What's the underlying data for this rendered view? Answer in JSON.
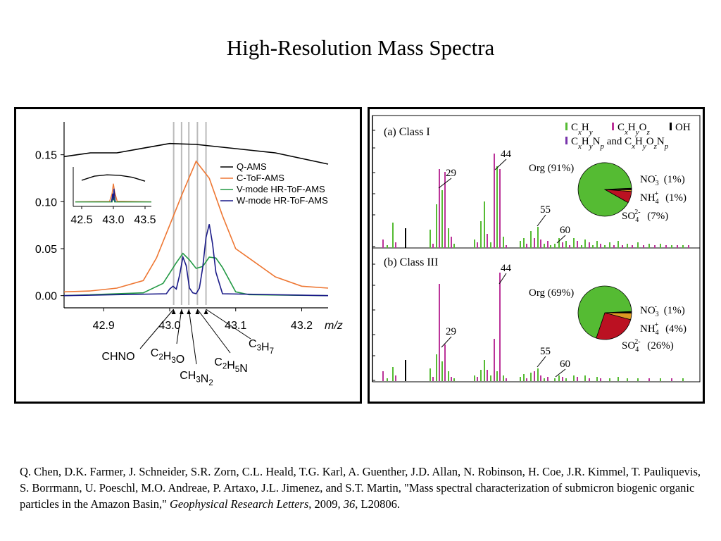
{
  "page": {
    "title": "High-Resolution Mass Spectra"
  },
  "citation": {
    "authors": "Q. Chen, D.K. Farmer, J. Schneider, S.R. Zorn, C.L. Heald, T.G. Karl, A. Guenther, J.D. Allan, N. Robinson, H. Coe, J.R. Kimmel, T. Pauliquevis, S. Borrmann, U. Poeschl, M.O. Andreae, P. Artaxo, J.L. Jimenez, and S.T. Martin, \"Mass spectral characterization of submicron biogenic organic particles in the Amazon Basin,\" ",
    "journal": "Geophysical Research Letters",
    "sep1": ", 2009, ",
    "volume": "36",
    "sep2": ", L20806."
  },
  "chart_data": [
    {
      "type": "line",
      "xlabel": "m/z",
      "xlim": [
        42.84,
        43.24
      ],
      "ylim": [
        -0.01,
        0.185
      ],
      "x_ticks": [
        42.9,
        43.0,
        43.1,
        43.2
      ],
      "x_tick_labels": [
        "42.9",
        "43.0",
        "43.1",
        "43.2"
      ],
      "y_ticks": [
        0.0,
        0.05,
        0.1,
        0.15
      ],
      "y_tick_labels": [
        "0.00",
        "0.05",
        "0.10",
        "0.15"
      ],
      "colors": {
        "Q-AMS": "#000000",
        "C-ToF-AMS": "#ee7733",
        "V-mode HR-ToF-AMS": "#229944",
        "W-mode HR-ToF-AMS": "#1a1a88"
      },
      "legend": [
        "Q-AMS",
        "C-ToF-AMS",
        "V-mode HR-ToF-AMS",
        "W-mode HR-ToF-AMS"
      ],
      "series": [
        {
          "name": "Q-AMS",
          "x": [
            42.84,
            42.88,
            42.92,
            42.96,
            43.0,
            43.04,
            43.08,
            43.12,
            43.16,
            43.2,
            43.24
          ],
          "y": [
            0.148,
            0.152,
            0.152,
            0.157,
            0.162,
            0.161,
            0.158,
            0.155,
            0.152,
            0.146,
            0.14
          ]
        },
        {
          "name": "C-ToF-AMS",
          "x": [
            42.84,
            42.88,
            42.92,
            42.96,
            42.98,
            43.0,
            43.02,
            43.04,
            43.06,
            43.08,
            43.1,
            43.12,
            43.16,
            43.2,
            43.24
          ],
          "y": [
            0.004,
            0.005,
            0.008,
            0.016,
            0.04,
            0.075,
            0.11,
            0.143,
            0.125,
            0.085,
            0.05,
            0.04,
            0.02,
            0.01,
            0.008
          ]
        },
        {
          "name": "V-mode HR-ToF-AMS",
          "x": [
            42.84,
            42.96,
            42.99,
            43.01,
            43.02,
            43.03,
            43.04,
            43.05,
            43.06,
            43.07,
            43.08,
            43.1,
            43.12,
            43.24
          ],
          "y": [
            0.0,
            0.003,
            0.013,
            0.035,
            0.045,
            0.038,
            0.029,
            0.031,
            0.041,
            0.04,
            0.03,
            0.004,
            0.001,
            0.0
          ]
        },
        {
          "name": "W-mode HR-ToF-AMS",
          "x": [
            42.84,
            42.995,
            43.0,
            43.005,
            43.01,
            43.015,
            43.02,
            43.025,
            43.03,
            43.035,
            43.04,
            43.045,
            43.05,
            43.055,
            43.06,
            43.065,
            43.07,
            43.08,
            43.24
          ],
          "y": [
            0.0,
            0.002,
            0.007,
            0.01,
            0.007,
            0.022,
            0.041,
            0.032,
            0.008,
            0.003,
            0.002,
            0.008,
            0.03,
            0.062,
            0.076,
            0.055,
            0.025,
            0.002,
            0.0
          ]
        }
      ],
      "vertical_lines_x": [
        43.006,
        43.018,
        43.029,
        43.042,
        43.055
      ],
      "annotations": [
        {
          "label": "CHNO",
          "x": 43.006
        },
        {
          "label": "C2H3O",
          "x": 43.018
        },
        {
          "label": "CH3N2",
          "x": 43.029
        },
        {
          "label": "C2H5N",
          "x": 43.042
        },
        {
          "label": "C3H7",
          "x": 43.055
        }
      ],
      "inset": {
        "x_ticks": [
          42.5,
          43.0,
          43.5
        ],
        "x_tick_labels": [
          "42.5",
          "43.0",
          "43.5"
        ],
        "xlim": [
          42.4,
          43.6
        ]
      }
    },
    {
      "type": "bar",
      "title": "(a) Class I",
      "legend": [
        {
          "name": "CxHy",
          "color": "#55bb33"
        },
        {
          "name": "CxHyOz",
          "color": "#bb3399"
        },
        {
          "name": "OH",
          "color": "#000000"
        },
        {
          "name": "CxHyNp and CxHyOzNp",
          "color": "#7733aa"
        }
      ],
      "peak_labels": [
        "29",
        "44",
        "55",
        "60"
      ],
      "pie": {
        "title": "Org (91%)",
        "slices": [
          {
            "name": "Org",
            "value": 91,
            "color": "#55bb33"
          },
          {
            "name": "NO3-",
            "label": "(1%)",
            "value": 1,
            "color": "#000000"
          },
          {
            "name": "NH4+",
            "label": "(1%)",
            "value": 1,
            "color": "#dd9922"
          },
          {
            "name": "SO42-",
            "label": "(7%)",
            "value": 7,
            "color": "#bb1122"
          }
        ]
      }
    },
    {
      "type": "bar",
      "title": "(b) Class III",
      "peak_labels": [
        "29",
        "44",
        "55",
        "60"
      ],
      "pie": {
        "title": "Org (69%)",
        "slices": [
          {
            "name": "Org",
            "value": 69,
            "color": "#55bb33"
          },
          {
            "name": "NO3-",
            "label": "(1%)",
            "value": 1,
            "color": "#000000"
          },
          {
            "name": "NH4+",
            "label": "(4%)",
            "value": 4,
            "color": "#dd9922"
          },
          {
            "name": "SO42-",
            "label": "(26%)",
            "value": 26,
            "color": "#bb1122"
          }
        ]
      }
    }
  ]
}
